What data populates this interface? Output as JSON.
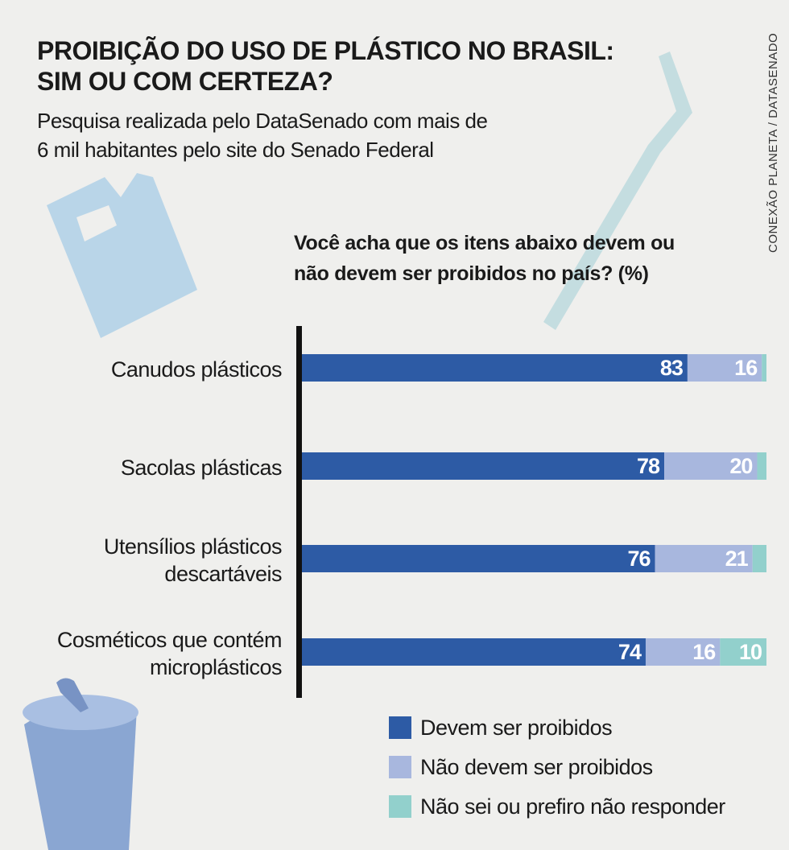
{
  "title": "PROIBIÇÃO DO USO DE PLÁSTICO NO BRASIL:\nSIM OU COM CERTEZA?",
  "subtitle": "Pesquisa realizada pelo DataSenado com mais de\n6 mil habitantes pelo site do Senado Federal",
  "source": "CONEXÃO PLANETA / DATASENADO",
  "chart_data": {
    "type": "stacked-bar-horizontal",
    "title": "Você acha que os itens abaixo devem ou\nnão devem ser proibidos no país? (%)",
    "categories": [
      "Canudos plásticos",
      "Sacolas plásticas",
      "Utensílios plásticos\ndescartáveis",
      "Cosméticos que contém\nmicroplásticos"
    ],
    "series": [
      {
        "name": "Devem ser proibidos",
        "color": "#2d5ba5",
        "values": [
          83,
          78,
          76,
          74
        ]
      },
      {
        "name": "Não devem ser proibidos",
        "color": "#a8b7de",
        "values": [
          16,
          20,
          21,
          16
        ]
      },
      {
        "name": "Não sei ou prefiro não responder",
        "color": "#92d0cc",
        "values": [
          1,
          2,
          3,
          10
        ],
        "value_labels": [
          null,
          null,
          null,
          "10"
        ]
      }
    ]
  }
}
